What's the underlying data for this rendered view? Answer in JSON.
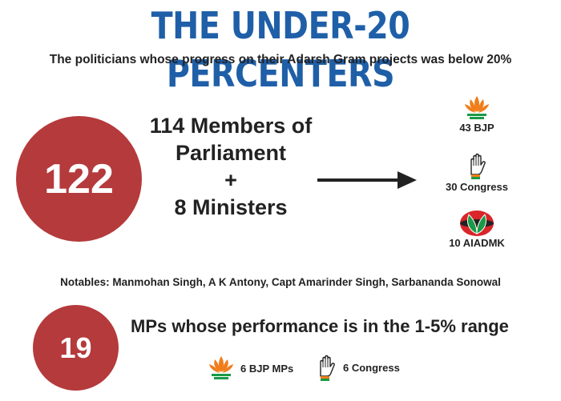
{
  "title": "THE UNDER-20 PERCENTERS",
  "subtitle": "The politicians whose progress on their Adarsh Gram projects was below 20%",
  "total": {
    "count": "122",
    "line1": "114 Members of",
    "line2": "Parliament",
    "plus": "+",
    "line3": "8 Ministers"
  },
  "parties": [
    {
      "label": "43 BJP",
      "icon": "lotus-icon"
    },
    {
      "label": "30 Congress",
      "icon": "hand-icon"
    },
    {
      "label": "10 AIADMK",
      "icon": "two-leaves-icon"
    }
  ],
  "notables": "Notables: Manmohan Singh, A K Antony, Capt Amarinder Singh, Sarbananda Sonowal",
  "range": {
    "count": "19",
    "text": "MPs whose performance is in the 1-5% range",
    "bjp_label": "6 BJP MPs",
    "congress_label": "6 Congress"
  },
  "colors": {
    "title_blue": "#1f5fa8",
    "circle_red": "#b53a3c",
    "bjp_orange": "#f07d1a",
    "congress_green": "#1a9a47",
    "aiadmk_red": "#d8262a"
  }
}
